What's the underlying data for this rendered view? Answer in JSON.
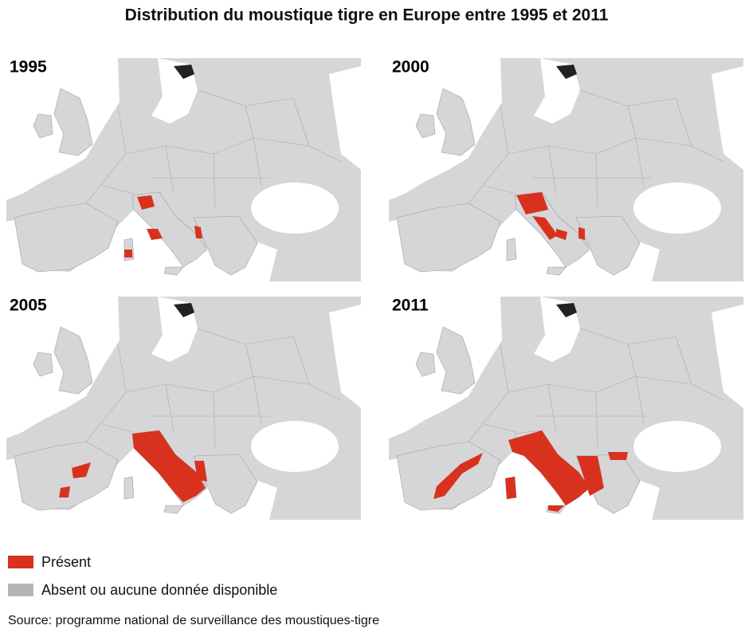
{
  "title": "Distribution du moustique tigre en Europe entre 1995 et 2011",
  "panels": [
    {
      "year": "1995"
    },
    {
      "year": "2000"
    },
    {
      "year": "2005"
    },
    {
      "year": "2011"
    }
  ],
  "legend": [
    {
      "label": "Présent",
      "color": "#d8321f"
    },
    {
      "label": "Absent ou aucune donnée disponible",
      "color": "#b5b5b5"
    }
  ],
  "source": "Source: programme national de surveillance des moustiques-tigre"
}
